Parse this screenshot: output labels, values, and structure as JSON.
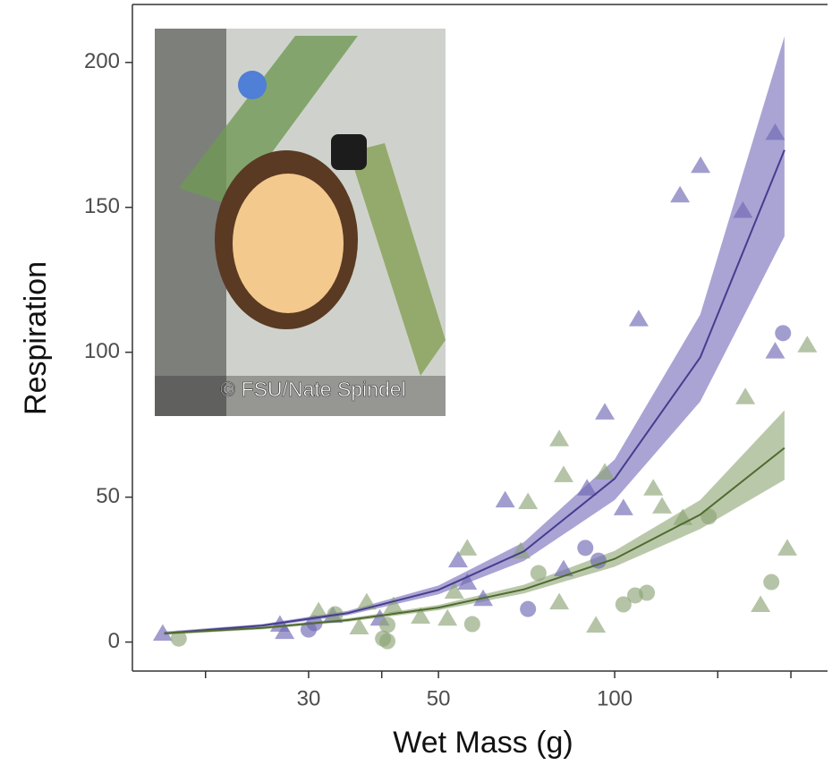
{
  "chart_data": {
    "type": "scatter",
    "x_label": "Wet Mass (g)",
    "y_label": "Respiration",
    "annotation": "© FSU/Nate Spindel",
    "xscale": "log",
    "xlim": [
      15,
      231
    ],
    "ylim": [
      -10,
      220
    ],
    "xticks": [
      30,
      50,
      100
    ],
    "xminorticks": [
      20,
      40,
      150,
      200
    ],
    "yticks": [
      0,
      50,
      100,
      150,
      200
    ],
    "grid": false,
    "series": [
      {
        "color": "#6f68b4",
        "marker": "triangle",
        "x": [
          16.9,
          26.8,
          27.3,
          33.0,
          39.7,
          54.0,
          56.0,
          59.6,
          65.0,
          89.7,
          96.2,
          103.5,
          109.9,
          129.3,
          140.2,
          165.6,
          188.0,
          188.0,
          81.8
        ],
        "values": [
          3.1,
          6.2,
          3.7,
          9.3,
          8.3,
          28.4,
          20.7,
          15.1,
          49.1,
          53.2,
          79.4,
          46.4,
          111.6,
          154.3,
          164.5,
          149.0,
          175.9,
          100.5,
          25.3
        ]
      },
      {
        "color": "#6f68b4",
        "marker": "circle",
        "x": [
          30.0,
          30.7,
          71.1,
          89.1,
          93.8,
          193.9
        ],
        "values": [
          4.3,
          6.5,
          11.4,
          32.5,
          28.1,
          106.6
        ]
      },
      {
        "color": "#8ea476",
        "marker": "triangle",
        "x": [
          31.2,
          36.6,
          37.7,
          41.9,
          46.6,
          51.8,
          53.2,
          56.0,
          69.1,
          71.1,
          80.4,
          81.8,
          80.4,
          92.9,
          96.2,
          116.4,
          120.5,
          130.7,
          167.2,
          177.5,
          197.2,
          213.3
        ],
        "values": [
          10.8,
          5.3,
          13.9,
          12.7,
          9.0,
          8.3,
          17.6,
          32.5,
          31.5,
          48.5,
          70.2,
          57.8,
          13.9,
          5.9,
          58.7,
          53.2,
          47.0,
          43.0,
          84.7,
          13.0,
          32.5,
          102.6
        ]
      },
      {
        "color": "#8ea476",
        "marker": "circle",
        "x": [
          18.0,
          33.3,
          40.2,
          40.9,
          40.9,
          57.1,
          74.1,
          103.5,
          108.4,
          113.5,
          144.8,
          185.2
        ],
        "values": [
          1.2,
          9.6,
          1.2,
          0.3,
          5.9,
          6.2,
          23.8,
          13.0,
          16.1,
          17.0,
          43.3,
          20.7
        ]
      }
    ],
    "fits": [
      {
        "color": "#463d8e",
        "band_color": "#8c86c6",
        "x": [
          17,
          25,
          35,
          50,
          70,
          100,
          140,
          195
        ],
        "values": [
          3.0,
          5.7,
          10.0,
          18.0,
          31.3,
          56.4,
          98.2,
          169.8
        ],
        "lower": [
          2.5,
          5.2,
          9.3,
          16.5,
          28,
          49,
          83,
          140
        ],
        "upper": [
          3.6,
          6.2,
          10.8,
          19.5,
          34.5,
          63,
          113,
          209
        ]
      },
      {
        "color": "#4f6b2f",
        "band_color": "#a3b68d",
        "x": [
          17,
          25,
          35,
          50,
          70,
          100,
          140,
          195
        ],
        "values": [
          3.0,
          4.9,
          7.6,
          11.9,
          18.2,
          28.7,
          44.0,
          67.0
        ],
        "lower": [
          2.5,
          4.4,
          7,
          11,
          16.8,
          26,
          39,
          56
        ],
        "upper": [
          3.5,
          5.4,
          8.2,
          12.8,
          19.8,
          31.5,
          49,
          80
        ]
      }
    ]
  }
}
